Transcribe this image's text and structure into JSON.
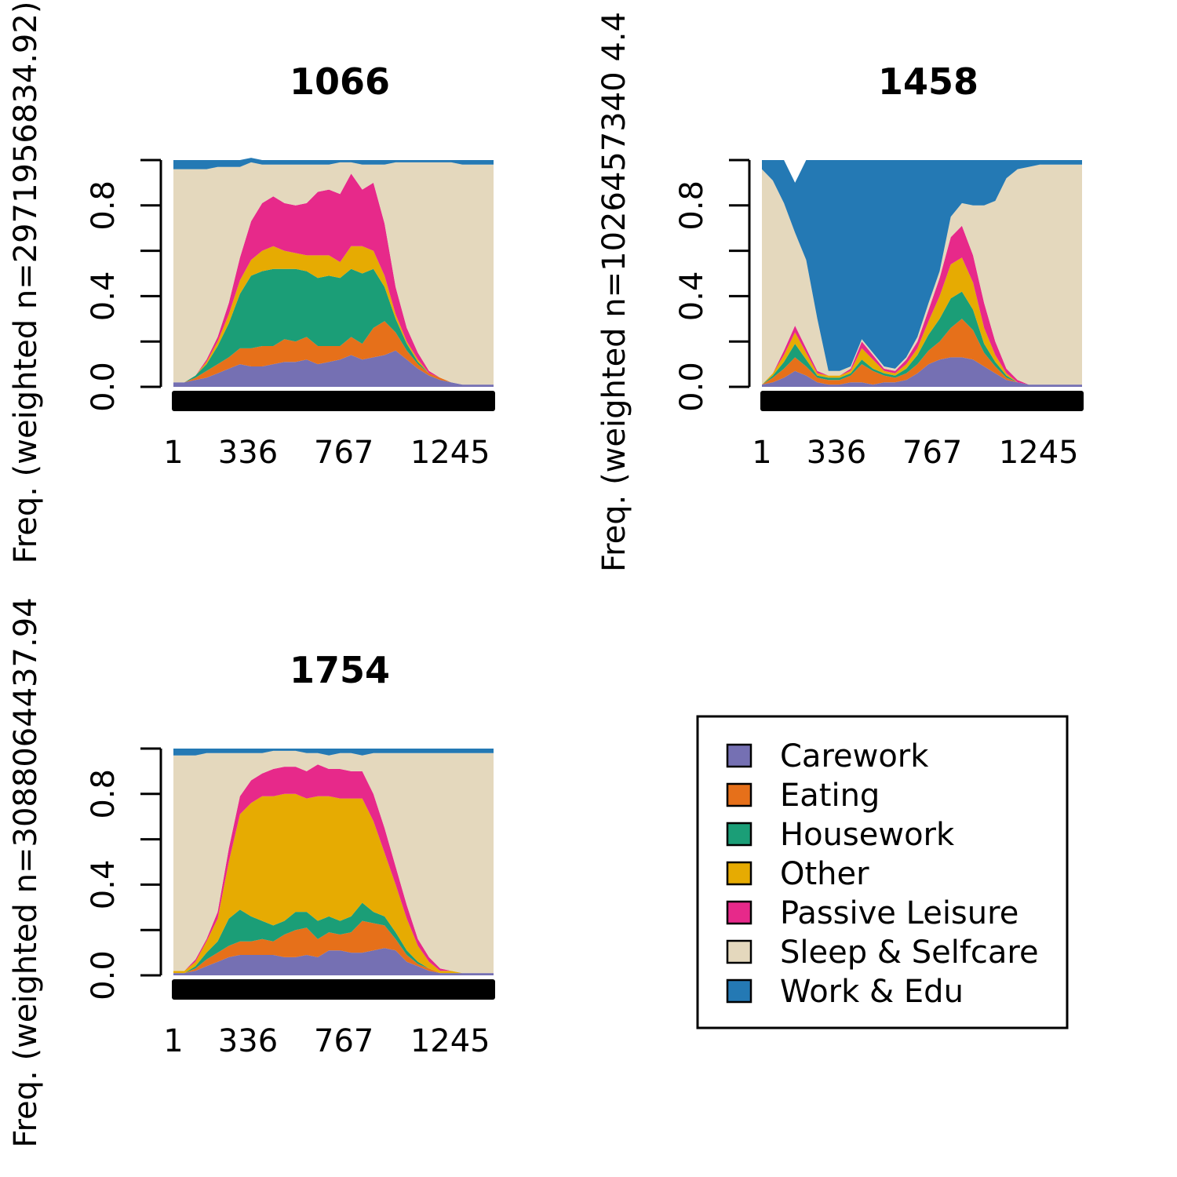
{
  "chart_data": [
    {
      "type": "area",
      "title": "1066",
      "ylabel": "Freq. (weighted n=2971956834.92)",
      "xlabel": "",
      "x_ticks": [
        "1",
        "336",
        "767",
        "1245"
      ],
      "y_ticks": [
        "0.0",
        "0.4",
        "0.8"
      ],
      "ylim": [
        0,
        1
      ],
      "x": [
        1,
        50,
        100,
        150,
        200,
        250,
        300,
        350,
        400,
        450,
        500,
        550,
        600,
        650,
        700,
        750,
        800,
        850,
        900,
        950,
        1000,
        1050,
        1100,
        1150,
        1200,
        1250,
        1300,
        1350,
        1400,
        1440
      ],
      "series": [
        {
          "name": "Carework",
          "values": [
            0.02,
            0.02,
            0.03,
            0.04,
            0.06,
            0.08,
            0.1,
            0.09,
            0.09,
            0.1,
            0.11,
            0.11,
            0.12,
            0.1,
            0.11,
            0.12,
            0.14,
            0.12,
            0.13,
            0.14,
            0.16,
            0.12,
            0.08,
            0.05,
            0.03,
            0.02,
            0.01,
            0.01,
            0.01,
            0.01
          ]
        },
        {
          "name": "Eating",
          "values": [
            0.0,
            0.0,
            0.01,
            0.03,
            0.04,
            0.05,
            0.07,
            0.08,
            0.09,
            0.08,
            0.1,
            0.09,
            0.1,
            0.08,
            0.07,
            0.06,
            0.08,
            0.07,
            0.13,
            0.15,
            0.08,
            0.04,
            0.02,
            0.01,
            0.01,
            0.0,
            0.0,
            0.0,
            0.0,
            0.0
          ]
        },
        {
          "name": "Housework",
          "values": [
            0.0,
            0.0,
            0.01,
            0.03,
            0.08,
            0.15,
            0.24,
            0.32,
            0.33,
            0.34,
            0.31,
            0.32,
            0.29,
            0.3,
            0.31,
            0.3,
            0.3,
            0.31,
            0.26,
            0.15,
            0.06,
            0.03,
            0.01,
            0.0,
            0.0,
            0.0,
            0.0,
            0.0,
            0.0,
            0.0
          ]
        },
        {
          "name": "Other",
          "values": [
            0.0,
            0.0,
            0.0,
            0.01,
            0.02,
            0.04,
            0.06,
            0.07,
            0.09,
            0.1,
            0.08,
            0.07,
            0.07,
            0.1,
            0.09,
            0.07,
            0.1,
            0.12,
            0.08,
            0.05,
            0.02,
            0.01,
            0.01,
            0.0,
            0.0,
            0.0,
            0.0,
            0.0,
            0.0,
            0.0
          ]
        },
        {
          "name": "Passive Leisure",
          "values": [
            0.0,
            0.0,
            0.0,
            0.01,
            0.02,
            0.05,
            0.1,
            0.17,
            0.21,
            0.22,
            0.21,
            0.21,
            0.23,
            0.28,
            0.29,
            0.3,
            0.32,
            0.25,
            0.3,
            0.23,
            0.12,
            0.06,
            0.03,
            0.01,
            0.0,
            0.0,
            0.0,
            0.0,
            0.0,
            0.0
          ]
        },
        {
          "name": "Sleep & Selfcare",
          "values": [
            0.94,
            0.94,
            0.91,
            0.84,
            0.75,
            0.6,
            0.4,
            0.26,
            0.17,
            0.14,
            0.17,
            0.18,
            0.17,
            0.12,
            0.11,
            0.14,
            0.05,
            0.11,
            0.08,
            0.26,
            0.55,
            0.73,
            0.84,
            0.92,
            0.95,
            0.97,
            0.97,
            0.97,
            0.97,
            0.97
          ]
        },
        {
          "name": "Work & Edu",
          "values": [
            0.04,
            0.04,
            0.04,
            0.04,
            0.03,
            0.03,
            0.03,
            0.02,
            0.02,
            0.02,
            0.02,
            0.02,
            0.02,
            0.02,
            0.02,
            0.01,
            0.01,
            0.02,
            0.02,
            0.02,
            0.01,
            0.01,
            0.01,
            0.01,
            0.01,
            0.01,
            0.02,
            0.02,
            0.02,
            0.02
          ]
        }
      ]
    },
    {
      "type": "area",
      "title": "1458",
      "ylabel": "Freq. (weighted n=1026457340 4.4",
      "xlabel": "",
      "x_ticks": [
        "1",
        "336",
        "767",
        "1245"
      ],
      "y_ticks": [
        "0.0",
        "0.4",
        "0.8"
      ],
      "ylim": [
        0,
        1
      ],
      "x": [
        1,
        50,
        100,
        150,
        200,
        250,
        300,
        350,
        400,
        450,
        500,
        550,
        600,
        650,
        700,
        750,
        800,
        850,
        900,
        950,
        1000,
        1050,
        1100,
        1150,
        1200,
        1250,
        1300,
        1350,
        1400,
        1440
      ],
      "series": [
        {
          "name": "Carework",
          "values": [
            0.01,
            0.02,
            0.04,
            0.07,
            0.05,
            0.02,
            0.01,
            0.01,
            0.02,
            0.02,
            0.01,
            0.02,
            0.02,
            0.03,
            0.06,
            0.1,
            0.12,
            0.13,
            0.13,
            0.12,
            0.09,
            0.06,
            0.03,
            0.02,
            0.01,
            0.01,
            0.01,
            0.01,
            0.01,
            0.01
          ]
        },
        {
          "name": "Eating",
          "values": [
            0.0,
            0.02,
            0.04,
            0.06,
            0.04,
            0.02,
            0.02,
            0.02,
            0.03,
            0.08,
            0.06,
            0.03,
            0.02,
            0.03,
            0.04,
            0.06,
            0.08,
            0.13,
            0.17,
            0.13,
            0.06,
            0.03,
            0.01,
            0.0,
            0.0,
            0.0,
            0.0,
            0.0,
            0.0,
            0.0
          ]
        },
        {
          "name": "Housework",
          "values": [
            0.0,
            0.01,
            0.03,
            0.06,
            0.03,
            0.01,
            0.01,
            0.01,
            0.01,
            0.02,
            0.01,
            0.01,
            0.01,
            0.02,
            0.04,
            0.07,
            0.1,
            0.13,
            0.12,
            0.09,
            0.04,
            0.02,
            0.01,
            0.0,
            0.0,
            0.0,
            0.0,
            0.0,
            0.0,
            0.0
          ]
        },
        {
          "name": "Other",
          "values": [
            0.0,
            0.01,
            0.03,
            0.05,
            0.03,
            0.01,
            0.01,
            0.01,
            0.01,
            0.05,
            0.04,
            0.01,
            0.01,
            0.02,
            0.03,
            0.06,
            0.1,
            0.15,
            0.15,
            0.12,
            0.07,
            0.03,
            0.01,
            0.0,
            0.0,
            0.0,
            0.0,
            0.0,
            0.0,
            0.0
          ]
        },
        {
          "name": "Passive Leisure",
          "values": [
            0.0,
            0.0,
            0.02,
            0.03,
            0.02,
            0.01,
            0.0,
            0.0,
            0.01,
            0.03,
            0.02,
            0.01,
            0.01,
            0.02,
            0.03,
            0.05,
            0.08,
            0.12,
            0.14,
            0.12,
            0.11,
            0.06,
            0.02,
            0.01,
            0.0,
            0.0,
            0.0,
            0.0,
            0.0,
            0.0
          ]
        },
        {
          "name": "Sleep & Selfcare",
          "values": [
            0.95,
            0.85,
            0.65,
            0.41,
            0.39,
            0.23,
            0.02,
            0.02,
            0.01,
            0.01,
            0.01,
            0.01,
            0.01,
            0.01,
            0.02,
            0.03,
            0.03,
            0.09,
            0.1,
            0.22,
            0.43,
            0.62,
            0.84,
            0.93,
            0.96,
            0.97,
            0.97,
            0.97,
            0.97,
            0.97
          ]
        },
        {
          "name": "Work & Edu",
          "values": [
            0.04,
            0.09,
            0.19,
            0.22,
            0.44,
            0.7,
            0.93,
            0.93,
            0.91,
            0.79,
            0.85,
            0.91,
            0.92,
            0.87,
            0.78,
            0.63,
            0.49,
            0.25,
            0.19,
            0.2,
            0.2,
            0.18,
            0.08,
            0.04,
            0.03,
            0.02,
            0.02,
            0.02,
            0.02,
            0.02
          ]
        }
      ]
    },
    {
      "type": "area",
      "title": "1754",
      "ylabel": "Freq. (weighted n=3088064437.94",
      "xlabel": "",
      "x_ticks": [
        "1",
        "336",
        "767",
        "1245"
      ],
      "y_ticks": [
        "0.0",
        "0.4",
        "0.8"
      ],
      "ylim": [
        0,
        1
      ],
      "x": [
        1,
        50,
        100,
        150,
        200,
        250,
        300,
        350,
        400,
        450,
        500,
        550,
        600,
        650,
        700,
        750,
        800,
        850,
        900,
        950,
        1000,
        1050,
        1100,
        1150,
        1200,
        1250,
        1300,
        1350,
        1400,
        1440
      ],
      "series": [
        {
          "name": "Carework",
          "values": [
            0.01,
            0.01,
            0.02,
            0.04,
            0.06,
            0.08,
            0.09,
            0.09,
            0.09,
            0.09,
            0.08,
            0.08,
            0.09,
            0.08,
            0.11,
            0.11,
            0.1,
            0.1,
            0.11,
            0.12,
            0.11,
            0.06,
            0.04,
            0.02,
            0.01,
            0.01,
            0.01,
            0.01,
            0.01,
            0.01
          ]
        },
        {
          "name": "Eating",
          "values": [
            0.0,
            0.0,
            0.01,
            0.03,
            0.04,
            0.05,
            0.06,
            0.06,
            0.07,
            0.06,
            0.1,
            0.12,
            0.12,
            0.08,
            0.08,
            0.07,
            0.09,
            0.14,
            0.12,
            0.1,
            0.05,
            0.03,
            0.01,
            0.01,
            0.0,
            0.0,
            0.0,
            0.0,
            0.0,
            0.0
          ]
        },
        {
          "name": "Housework",
          "values": [
            0.0,
            0.0,
            0.01,
            0.03,
            0.05,
            0.12,
            0.14,
            0.11,
            0.08,
            0.07,
            0.06,
            0.08,
            0.07,
            0.08,
            0.07,
            0.06,
            0.07,
            0.08,
            0.05,
            0.04,
            0.03,
            0.02,
            0.01,
            0.0,
            0.0,
            0.0,
            0.0,
            0.0,
            0.0,
            0.0
          ]
        },
        {
          "name": "Other",
          "values": [
            0.01,
            0.01,
            0.02,
            0.05,
            0.1,
            0.25,
            0.42,
            0.5,
            0.55,
            0.57,
            0.56,
            0.52,
            0.5,
            0.55,
            0.53,
            0.54,
            0.52,
            0.46,
            0.4,
            0.28,
            0.21,
            0.14,
            0.07,
            0.03,
            0.01,
            0.01,
            0.0,
            0.0,
            0.0,
            0.0
          ]
        },
        {
          "name": "Passive Leisure",
          "values": [
            0.0,
            0.0,
            0.01,
            0.01,
            0.03,
            0.06,
            0.08,
            0.1,
            0.1,
            0.12,
            0.12,
            0.12,
            0.12,
            0.14,
            0.12,
            0.13,
            0.12,
            0.12,
            0.12,
            0.11,
            0.08,
            0.06,
            0.03,
            0.02,
            0.01,
            0.0,
            0.0,
            0.0,
            0.0,
            0.0
          ]
        },
        {
          "name": "Sleep & Selfcare",
          "values": [
            0.95,
            0.95,
            0.9,
            0.82,
            0.7,
            0.42,
            0.19,
            0.12,
            0.09,
            0.08,
            0.07,
            0.07,
            0.08,
            0.05,
            0.06,
            0.07,
            0.08,
            0.07,
            0.18,
            0.33,
            0.5,
            0.67,
            0.82,
            0.9,
            0.95,
            0.96,
            0.97,
            0.97,
            0.97,
            0.97
          ]
        },
        {
          "name": "Work & Edu",
          "values": [
            0.03,
            0.03,
            0.03,
            0.02,
            0.02,
            0.02,
            0.02,
            0.02,
            0.02,
            0.01,
            0.01,
            0.01,
            0.02,
            0.02,
            0.03,
            0.02,
            0.02,
            0.03,
            0.02,
            0.02,
            0.02,
            0.02,
            0.02,
            0.02,
            0.02,
            0.02,
            0.02,
            0.02,
            0.02,
            0.02
          ]
        }
      ]
    }
  ],
  "legend": {
    "items": [
      {
        "label": "Carework",
        "color": "#7570b3"
      },
      {
        "label": "Eating",
        "color": "#e6701a"
      },
      {
        "label": "Housework",
        "color": "#1b9e77"
      },
      {
        "label": "Other",
        "color": "#e6ab02"
      },
      {
        "label": "Passive Leisure",
        "color": "#e7298a"
      },
      {
        "label": "Sleep & Selfcare",
        "color": "#e4d8bd"
      },
      {
        "label": "Work & Edu",
        "color": "#2479b4"
      }
    ]
  }
}
